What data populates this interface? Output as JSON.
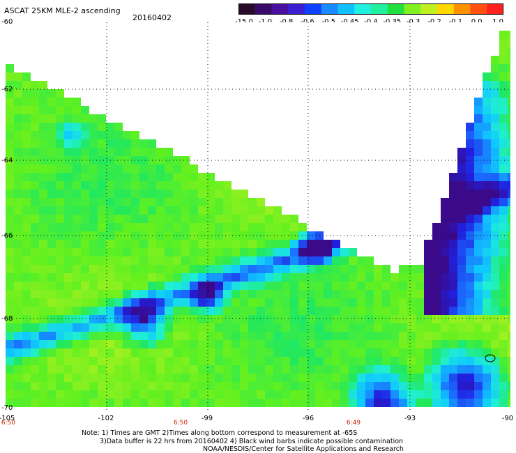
{
  "header": {
    "title": "ASCAT 25KM MLE-2 ascending",
    "date": "20160402"
  },
  "colorbar": {
    "colors": [
      "#2a0a2a",
      "#3a0a6a",
      "#4a10a0",
      "#3a20d0",
      "#1040ff",
      "#1a8aff",
      "#10c0ff",
      "#20f0e0",
      "#20f0a0",
      "#20e040",
      "#80f020",
      "#c0f020",
      "#ffd800",
      "#ff9000",
      "#ff5010",
      "#ff2020"
    ],
    "labels": [
      "-15.0",
      "-1.0",
      "-0.8",
      "-0.6",
      "-0.5",
      "-0.45",
      "-0.4",
      "-0.35",
      "-0.3",
      "-0.2",
      "-0.1",
      "0.0",
      "1.0"
    ]
  },
  "map": {
    "lat_labels": [
      "-60",
      "-62",
      "-64",
      "-66",
      "-68",
      "-70"
    ],
    "lon_labels": [
      "-105",
      "-102",
      "-99",
      "-96",
      "-93",
      "-90"
    ],
    "time_labels": [
      "6:50",
      "6:50",
      "6:49"
    ]
  },
  "footer": {
    "note_line1": "Note: 1) Times are GMT 2)Times along bottom correspond to measurement at -65S",
    "note_line2": "3)Data buffer is 22 hrs from 20160402 4) Black wind barbs indicate possible contamination",
    "note_line3": "NOAA/NESDIS/Center for Satellite Applications and Research"
  }
}
